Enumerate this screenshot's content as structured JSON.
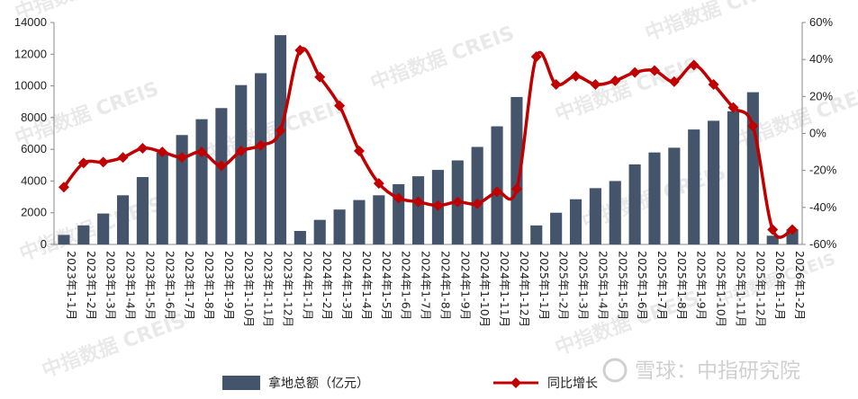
{
  "chart_data": {
    "type": "bar",
    "title": "",
    "categories": [
      "2023年1-1月",
      "2023年1-2月",
      "2023年1-3月",
      "2023年1-4月",
      "2023年1-5月",
      "2023年1-6月",
      "2023年1-7月",
      "2023年1-8月",
      "2023年1-9月",
      "2023年1-10月",
      "2023年1-11月",
      "2023年1-12月",
      "2024年1-1月",
      "2024年1-2月",
      "2024年1-3月",
      "2024年1-4月",
      "2024年1-5月",
      "2024年1-6月",
      "2024年1-7月",
      "2024年1-8月",
      "2024年1-9月",
      "2024年1-10月",
      "2024年1-11月",
      "2024年1-12月",
      "2025年1-1月",
      "2025年1-2月",
      "2025年1-3月",
      "2025年1-4月",
      "2025年1-5月",
      "2025年1-6月",
      "2025年1-7月",
      "2025年1-8月",
      "2025年1-9月",
      "2025年1-10月",
      "2025年1-11月",
      "2025年1-12月",
      "2026年1-1月",
      "2026年1-2月"
    ],
    "series": [
      {
        "name": "拿地总额（亿元）",
        "type": "bar",
        "axis": "left",
        "color": "#44546A",
        "values": [
          600,
          1200,
          1950,
          3100,
          4250,
          5800,
          6900,
          7900,
          8600,
          10050,
          10800,
          13200,
          850,
          1550,
          2200,
          2800,
          3100,
          3800,
          4300,
          4700,
          5300,
          6150,
          7450,
          9300,
          1200,
          2000,
          2850,
          3550,
          4000,
          5050,
          5800,
          6100,
          7250,
          7800,
          8400,
          9600,
          550,
          950
        ]
      },
      {
        "name": "同比增长",
        "type": "line",
        "axis": "right",
        "color": "#C00000",
        "values": [
          -29,
          -16,
          -15.5,
          -13,
          -8,
          -10,
          -13,
          -10,
          -17.5,
          -9.5,
          -6.5,
          1.5,
          45,
          30.5,
          15,
          -9.5,
          -27,
          -35,
          -37,
          -39,
          -37,
          -38,
          -31.5,
          -30,
          41.5,
          26.5,
          31,
          26.5,
          28.5,
          33,
          34,
          28,
          37,
          26.5,
          14,
          4,
          -52,
          -52
        ]
      }
    ],
    "y_left": {
      "min": 0,
      "max": 14000,
      "ticks": [
        "0",
        "2000",
        "4000",
        "6000",
        "8000",
        "10000",
        "12000",
        "14000"
      ]
    },
    "y_right": {
      "min": -60,
      "max": 60,
      "ticks": [
        "-60%",
        "-40%",
        "-20%",
        "0%",
        "20%",
        "40%",
        "60%"
      ]
    },
    "grid": false,
    "legend_position": "bottom"
  },
  "legend": {
    "bar_label": "拿地总额（亿元）",
    "line_label": "同比增长"
  },
  "watermark": {
    "text": "中指数据 CREIS"
  },
  "footer": {
    "logo_text": "雪球：中指研究院"
  }
}
